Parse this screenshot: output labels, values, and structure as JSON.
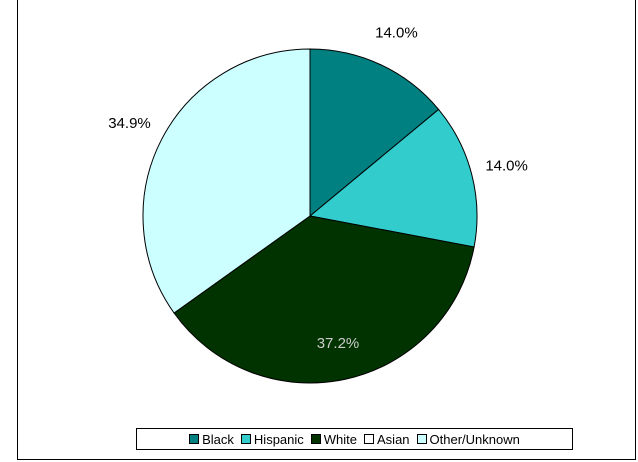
{
  "chart_data": {
    "type": "pie",
    "categories": [
      "Black",
      "Hispanic",
      "White",
      "Asian",
      "Other/Unknown"
    ],
    "values": [
      14.0,
      14.0,
      37.2,
      0.0,
      34.9
    ],
    "data_labels": [
      "14.0%",
      "14.0%",
      "37.2%",
      "",
      "34.9%"
    ],
    "colors": [
      "#008080",
      "#33CCCC",
      "#003300",
      "#FFFFFF",
      "#CCFFFF"
    ],
    "start_angle_deg": 0,
    "direction": "clockwise",
    "legend_position": "bottom"
  }
}
